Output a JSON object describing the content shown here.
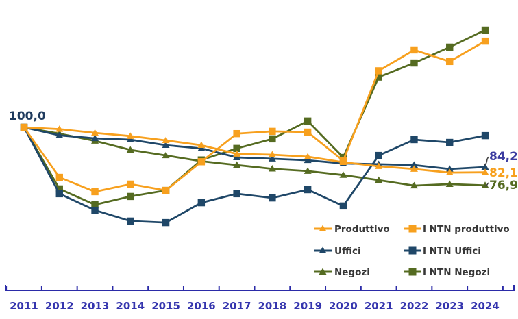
{
  "chart_data": {
    "type": "line",
    "title": "",
    "categories": [
      "2011",
      "2012",
      "2013",
      "2014",
      "2015",
      "2016",
      "2017",
      "2018",
      "2019",
      "2020",
      "2021",
      "2022",
      "2023",
      "2024"
    ],
    "series": [
      {
        "name": "Produttivo",
        "marker": "triangle",
        "color": "#f7a01e",
        "values": [
          100.0,
          99.3,
          97.8,
          96.5,
          94.8,
          92.9,
          89.4,
          89.1,
          88.3,
          86.1,
          84.5,
          83.4,
          82.0,
          82.1
        ]
      },
      {
        "name": "I NTN  produttivo",
        "marker": "square",
        "color": "#f7a01e",
        "values": [
          100.0,
          80.1,
          74.4,
          77.4,
          74.9,
          86.3,
          97.5,
          98.4,
          98.1,
          86.7,
          122.5,
          130.8,
          126.2,
          134.3
        ]
      },
      {
        "name": "Uffici",
        "marker": "triangle",
        "color": "#1f4768",
        "values": [
          100.0,
          96.8,
          95.6,
          95.1,
          92.9,
          91.6,
          88.0,
          87.5,
          86.9,
          85.6,
          85.3,
          85.0,
          83.4,
          84.2
        ]
      },
      {
        "name": "I NTN  Uffici",
        "marker": "square",
        "color": "#1f4768",
        "values": [
          100.0,
          73.6,
          67.0,
          62.7,
          62.1,
          70.0,
          73.6,
          71.9,
          75.2,
          68.7,
          88.8,
          95.1,
          94.0,
          96.7
        ]
      },
      {
        "name": "Negozi",
        "marker": "triangle",
        "color": "#556b21",
        "values": [
          100.0,
          97.5,
          94.6,
          91.0,
          88.8,
          86.5,
          85.0,
          83.5,
          82.6,
          81.0,
          79.0,
          76.8,
          77.4,
          76.9
        ]
      },
      {
        "name": "I NTN  Negozi",
        "marker": "square",
        "color": "#556b21",
        "values": [
          100.0,
          75.5,
          69.2,
          72.5,
          74.9,
          87.0,
          91.6,
          95.4,
          102.5,
          88.0,
          120.0,
          125.6,
          131.9,
          138.7
        ]
      }
    ],
    "baseline_label": "100,0",
    "end_labels": [
      {
        "text": "84,2",
        "series": "Uffici",
        "value": 84.2,
        "color": "#3b3ba0"
      },
      {
        "text": "82,1",
        "series": "Produttivo",
        "value": 82.1,
        "color": "#f7a01e"
      },
      {
        "text": "76,9",
        "series": "Negozi",
        "value": 76.9,
        "color": "#556b21"
      }
    ],
    "legend_columns": [
      [
        0,
        2,
        4
      ],
      [
        1,
        3,
        5
      ]
    ],
    "legend_position": "inside-bottom-right",
    "grid": false,
    "y_axis_visible": false,
    "x_axis_color": "#2b2ba8",
    "x_label_color": "#3535ae",
    "legend_text_color": "#363636",
    "ylim_implied": [
      60,
      140
    ],
    "baseline_value": 100.0
  }
}
